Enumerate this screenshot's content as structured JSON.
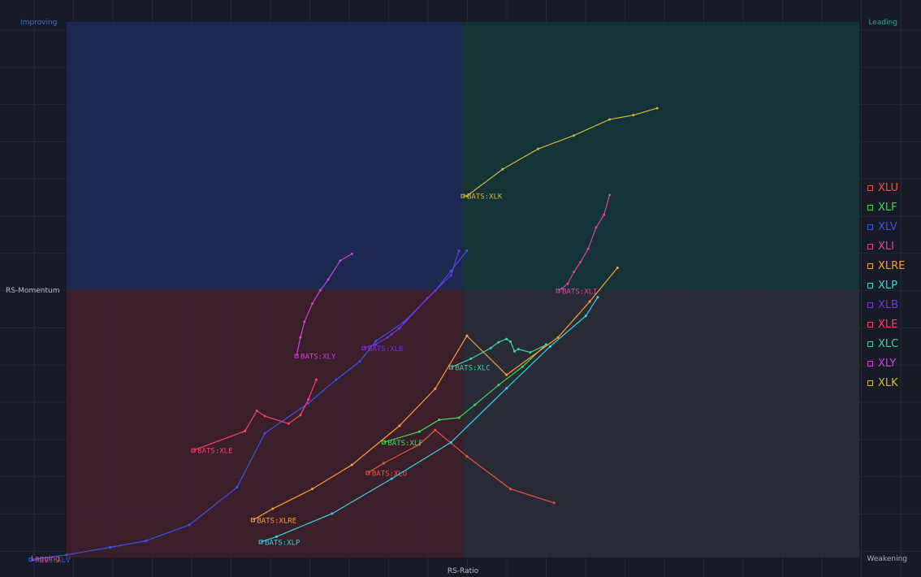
{
  "chart_data": {
    "type": "scatter",
    "subtype": "relative-rotation-graph",
    "xlabel": "RS-Ratio",
    "ylabel": "RS-Momentum",
    "quadrants": {
      "top_left": {
        "label": "Improving",
        "color": "#3b6fd8",
        "fill": "#1c2a55"
      },
      "top_right": {
        "label": "Leading",
        "color": "#26a69a",
        "fill": "#13363a"
      },
      "bottom_left": {
        "label": "Lagging",
        "color": "#ef5350",
        "fill": "#3e202c"
      },
      "bottom_right": {
        "label": "Weakening",
        "color": "#a8aebb",
        "fill": "#2a2e39"
      }
    },
    "xlim": [
      0,
      100
    ],
    "ylim": [
      0,
      100
    ],
    "center": [
      50,
      50
    ],
    "grid": true,
    "legend_position": "right",
    "series": [
      {
        "name": "XLU",
        "label": "BATS:XLU",
        "color": "#f0513d",
        "points": [
          [
            61.5,
            10.2
          ],
          [
            56,
            12.8
          ],
          [
            50.5,
            18.9
          ],
          [
            46.5,
            23.8
          ],
          [
            44.5,
            21.1
          ],
          [
            40,
            17.6
          ],
          [
            38,
            15.8
          ]
        ]
      },
      {
        "name": "XLF",
        "label": "BATS:XLF",
        "color": "#3ddc56",
        "points": [
          [
            60.5,
            39.8
          ],
          [
            57.5,
            35.6
          ],
          [
            54.5,
            32.2
          ],
          [
            51.5,
            28.5
          ],
          [
            49.5,
            26.1
          ],
          [
            47,
            25.7
          ],
          [
            44.5,
            23.5
          ],
          [
            40,
            21.5
          ]
        ]
      },
      {
        "name": "XLV",
        "label": "BATS:XLV",
        "color": "#3955f0",
        "points": [
          [
            50.5,
            57.3
          ],
          [
            48.5,
            53.5
          ],
          [
            46.5,
            49.8
          ],
          [
            42.5,
            43.9
          ],
          [
            39,
            40.4
          ],
          [
            37,
            36.6
          ],
          [
            34,
            33.2
          ],
          [
            30.5,
            28.8
          ],
          [
            25,
            23.2
          ],
          [
            21.5,
            13.1
          ],
          [
            15.5,
            6.1
          ],
          [
            10,
            3.1
          ],
          [
            5.5,
            1.9
          ],
          [
            0,
            0.5
          ],
          [
            -4.5,
            -0.4
          ]
        ]
      },
      {
        "name": "XLI",
        "label": "BATS:XLI",
        "color": "#e040a0",
        "points": [
          [
            68.5,
            67.7
          ],
          [
            67.8,
            64.0
          ],
          [
            66.8,
            61.6
          ],
          [
            65.8,
            57.6
          ],
          [
            64.8,
            55.1
          ],
          [
            64,
            53.3
          ],
          [
            63.2,
            51.1
          ],
          [
            62.5,
            50.2
          ],
          [
            62,
            49.8
          ]
        ]
      },
      {
        "name": "XLRE",
        "label": "BATS:XLRE",
        "color": "#ff9d2e",
        "points": [
          [
            69.5,
            54.1
          ],
          [
            66,
            47.8
          ],
          [
            62,
            41.1
          ],
          [
            55.5,
            34.1
          ],
          [
            50.5,
            41.4
          ],
          [
            46.5,
            31.5
          ],
          [
            42,
            24.6
          ],
          [
            36,
            17.3
          ],
          [
            31,
            12.8
          ],
          [
            26,
            9.1
          ],
          [
            23.5,
            7.0
          ]
        ]
      },
      {
        "name": "XLP",
        "label": "BATS:XLP",
        "color": "#37d4e6",
        "points": [
          [
            67,
            48.6
          ],
          [
            65.5,
            45.1
          ],
          [
            61,
            39.4
          ],
          [
            55.5,
            31.6
          ],
          [
            48.5,
            21.5
          ],
          [
            41,
            14.7
          ],
          [
            33.5,
            8.2
          ],
          [
            26.5,
            3.9
          ],
          [
            24.5,
            2.9
          ]
        ]
      },
      {
        "name": "XLB",
        "label": "BATS:XLB",
        "color": "#7a33e0",
        "points": [
          [
            49.5,
            57.3
          ],
          [
            48.5,
            52.7
          ],
          [
            45.5,
            48.4
          ],
          [
            42,
            42.8
          ],
          [
            41,
            41.7
          ],
          [
            40.5,
            41.1
          ],
          [
            39,
            39.8
          ],
          [
            37.5,
            39.1
          ]
        ]
      },
      {
        "name": "XLE",
        "label": "BATS:XLE",
        "color": "#ff3d6a",
        "points": [
          [
            31.5,
            33.2
          ],
          [
            30.5,
            29.5
          ],
          [
            29.5,
            26.6
          ],
          [
            28,
            25.0
          ],
          [
            25,
            26.4
          ],
          [
            24,
            27.4
          ],
          [
            22.5,
            23.6
          ],
          [
            16,
            20.0
          ]
        ]
      },
      {
        "name": "XLC",
        "label": "BATS:XLC",
        "color": "#3ad6a5",
        "points": [
          [
            60.5,
            39.7
          ],
          [
            58.5,
            38.3
          ],
          [
            57,
            38.9
          ],
          [
            56.5,
            38.5
          ],
          [
            56,
            40.3
          ],
          [
            55.5,
            40.8
          ],
          [
            54.5,
            40.2
          ],
          [
            53.5,
            39.1
          ],
          [
            51,
            37.1
          ],
          [
            48.5,
            35.5
          ]
        ]
      },
      {
        "name": "XLY",
        "label": "BATS:XLY",
        "color": "#d63ce0",
        "points": [
          [
            36,
            56.7
          ],
          [
            34.5,
            55.4
          ],
          [
            33,
            51.9
          ],
          [
            32,
            49.9
          ],
          [
            31,
            47.4
          ],
          [
            30,
            44.0
          ],
          [
            29.5,
            41.1
          ],
          [
            29,
            37.6
          ]
        ]
      },
      {
        "name": "XLK",
        "label": "BATS:XLK",
        "color": "#d4b73a",
        "points": [
          [
            74.5,
            83.9
          ],
          [
            71.5,
            82.6
          ],
          [
            68.5,
            81.8
          ],
          [
            64,
            78.8
          ],
          [
            59.5,
            76.3
          ],
          [
            55,
            72.5
          ],
          [
            50.5,
            67.5
          ],
          [
            50,
            67.5
          ]
        ]
      }
    ]
  }
}
